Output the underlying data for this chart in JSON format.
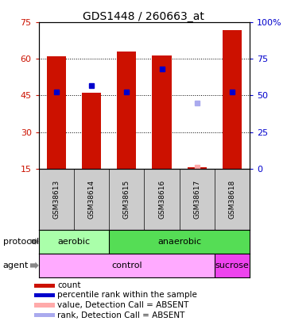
{
  "title": "GDS1448 / 260663_at",
  "samples": [
    "GSM38613",
    "GSM38614",
    "GSM38615",
    "GSM38616",
    "GSM38617",
    "GSM38618"
  ],
  "bar_values": [
    61,
    46,
    63,
    61.5,
    15.5,
    72
  ],
  "bar_bottom": 15,
  "bar_color": "#cc1100",
  "blue_marker_values": [
    46.5,
    49,
    46.5,
    56,
    null,
    46.5
  ],
  "blue_marker_color": "#0000cc",
  "absent_value_marker": [
    null,
    null,
    null,
    null,
    15.5,
    null
  ],
  "absent_value_color": "#ffaaaa",
  "absent_rank_marker": [
    null,
    null,
    null,
    null,
    42,
    null
  ],
  "absent_rank_color": "#aaaaee",
  "ylim_left": [
    15,
    75
  ],
  "ylim_right": [
    0,
    100
  ],
  "yticks_left": [
    15,
    30,
    45,
    60,
    75
  ],
  "yticks_right": [
    0,
    25,
    50,
    75,
    100
  ],
  "ytick_labels_right": [
    "0",
    "25",
    "50",
    "75",
    "100%"
  ],
  "aerobic_color": "#aaffaa",
  "anaerobic_color": "#55dd55",
  "control_color": "#ffaaff",
  "sucrose_color": "#ee44ee",
  "bar_width": 0.55,
  "plot_bg_color": "#ffffff",
  "label_color_left": "#cc1100",
  "label_color_right": "#0000cc",
  "legend_items": [
    "count",
    "percentile rank within the sample",
    "value, Detection Call = ABSENT",
    "rank, Detection Call = ABSENT"
  ],
  "legend_colors": [
    "#cc1100",
    "#0000cc",
    "#ffaaaa",
    "#aaaaee"
  ]
}
